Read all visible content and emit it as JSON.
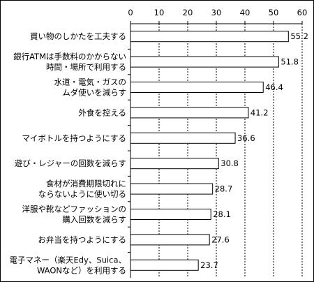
{
  "chart_data": {
    "type": "bar",
    "orientation": "horizontal",
    "categories": [
      [
        "買い物のしかたを工夫する"
      ],
      [
        "銀行ATMは手数料のかからない",
        "時間・場所で利用する"
      ],
      [
        "水道・電気・ガスの",
        "ムダ使いを減らす"
      ],
      [
        "外食を控える"
      ],
      [
        "マイボトルを持つようにする"
      ],
      [
        "遊び・レジャーの回数を減らす"
      ],
      [
        "食材が消費期限切れに",
        "ならないように使い切る"
      ],
      [
        "洋服や靴などファッションの",
        "購入回数を減らす"
      ],
      [
        "お弁当を持つようにする"
      ],
      [
        "電子マネー（楽天Edy、Suica、",
        "WAONなど）を利用する"
      ]
    ],
    "values": [
      55.2,
      51.8,
      46.4,
      41.2,
      36.6,
      30.8,
      28.7,
      28.1,
      27.6,
      23.7
    ],
    "value_labels": [
      "55.2",
      "51.8",
      "46.4",
      "41.2",
      "36.6",
      "30.8",
      "28.7",
      "28.1",
      "27.6",
      "23.7"
    ],
    "xlim": [
      0,
      60
    ],
    "xticks": [
      0,
      10,
      20,
      30,
      40,
      50,
      60
    ],
    "xtick_labels": [
      "0",
      "10",
      "20",
      "30",
      "40",
      "50",
      "60"
    ],
    "xaxis_position": "top",
    "grid": "vertical dashed",
    "legend": "none",
    "title": "",
    "xlabel": "",
    "ylabel": "",
    "colors": {
      "bar_fill": "#ffffff",
      "bar_stroke": "#000000",
      "grid": "#000000"
    }
  }
}
